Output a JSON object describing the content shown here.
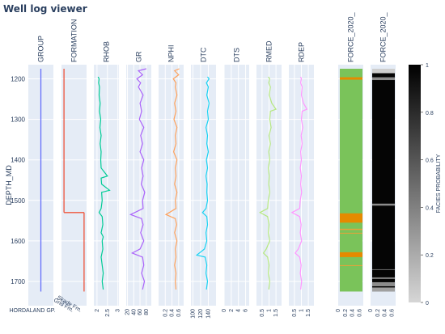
{
  "header": {
    "title": "Well log viewer"
  },
  "chart_data": {
    "type": "line",
    "title": "",
    "y_axis": {
      "label": "DEPTH_MD",
      "range": [
        1760,
        1165
      ],
      "ticks": [
        1200,
        1300,
        1400,
        1500,
        1600,
        1700
      ],
      "reversed": true
    },
    "data_depth_range": [
      1175,
      1725
    ],
    "grid": true,
    "tracks": [
      {
        "name": "GROUP",
        "kind": "categorical",
        "color": "#636efa",
        "x_range": [
          0,
          1
        ],
        "tick_labels": [
          "HORDALAND GP."
        ],
        "segments": [
          {
            "top": 1175,
            "base": 1725,
            "x": 0.5
          }
        ]
      },
      {
        "name": "FORMATION",
        "kind": "categorical",
        "color": "#ef553b",
        "x_range": [
          0,
          1
        ],
        "tick_labels": [
          "Grid Fm.",
          "Skade Fm."
        ],
        "segments": [
          {
            "top": 1175,
            "base": 1530,
            "x": 0.1
          },
          {
            "top": 1530,
            "base": 1725,
            "x": 0.9
          }
        ]
      },
      {
        "name": "RHOB",
        "kind": "log",
        "color": "#00cc96",
        "x_range": [
          1.85,
          3.05
        ],
        "ticks": [
          2,
          2.5,
          3
        ],
        "tick_labels": [
          "2",
          "2.5",
          "3"
        ],
        "curve": [
          [
            1195,
            2.05
          ],
          [
            1200,
            2.1
          ],
          [
            1210,
            2.08
          ],
          [
            1220,
            2.12
          ],
          [
            1240,
            2.1
          ],
          [
            1260,
            2.15
          ],
          [
            1280,
            2.12
          ],
          [
            1300,
            2.18
          ],
          [
            1320,
            2.14
          ],
          [
            1340,
            2.2
          ],
          [
            1360,
            2.15
          ],
          [
            1380,
            2.2
          ],
          [
            1400,
            2.18
          ],
          [
            1420,
            2.2
          ],
          [
            1440,
            2.5
          ],
          [
            1445,
            2.2
          ],
          [
            1460,
            2.22
          ],
          [
            1475,
            2.6
          ],
          [
            1480,
            2.22
          ],
          [
            1500,
            2.25
          ],
          [
            1520,
            2.2
          ],
          [
            1530,
            2.1
          ],
          [
            1540,
            2.25
          ],
          [
            1560,
            2.28
          ],
          [
            1580,
            2.2
          ],
          [
            1590,
            2.3
          ],
          [
            1600,
            2.25
          ],
          [
            1620,
            2.28
          ],
          [
            1640,
            2.2
          ],
          [
            1660,
            2.25
          ],
          [
            1680,
            2.3
          ],
          [
            1700,
            2.25
          ],
          [
            1720,
            2.3
          ]
        ]
      },
      {
        "name": "GR",
        "kind": "log",
        "color": "#ab63fa",
        "x_range": [
          16,
          96
        ],
        "ticks": [
          20,
          40,
          60,
          80
        ],
        "tick_labels": [
          "20",
          "40",
          "60",
          "80"
        ],
        "curve": [
          [
            1175,
            80
          ],
          [
            1180,
            55
          ],
          [
            1190,
            68
          ],
          [
            1200,
            50
          ],
          [
            1210,
            62
          ],
          [
            1220,
            55
          ],
          [
            1240,
            70
          ],
          [
            1260,
            60
          ],
          [
            1280,
            65
          ],
          [
            1300,
            58
          ],
          [
            1320,
            72
          ],
          [
            1340,
            62
          ],
          [
            1360,
            68
          ],
          [
            1380,
            60
          ],
          [
            1400,
            72
          ],
          [
            1420,
            65
          ],
          [
            1440,
            70
          ],
          [
            1460,
            64
          ],
          [
            1480,
            75
          ],
          [
            1500,
            68
          ],
          [
            1520,
            70
          ],
          [
            1535,
            30
          ],
          [
            1545,
            65
          ],
          [
            1560,
            70
          ],
          [
            1580,
            62
          ],
          [
            1600,
            72
          ],
          [
            1620,
            60
          ],
          [
            1630,
            35
          ],
          [
            1640,
            68
          ],
          [
            1660,
            72
          ],
          [
            1680,
            65
          ],
          [
            1700,
            74
          ],
          [
            1720,
            68
          ]
        ]
      },
      {
        "name": "NPHI",
        "kind": "log",
        "color": "#ffa15a",
        "x_range": [
          0.0,
          0.75
        ],
        "ticks": [
          0.2,
          0.4,
          0.6
        ],
        "tick_labels": [
          "0.2",
          "0.4",
          "0.6"
        ],
        "curve": [
          [
            1175,
            0.62
          ],
          [
            1180,
            0.48
          ],
          [
            1190,
            0.6
          ],
          [
            1200,
            0.44
          ],
          [
            1210,
            0.52
          ],
          [
            1220,
            0.5
          ],
          [
            1240,
            0.55
          ],
          [
            1260,
            0.48
          ],
          [
            1280,
            0.52
          ],
          [
            1300,
            0.46
          ],
          [
            1320,
            0.55
          ],
          [
            1340,
            0.5
          ],
          [
            1360,
            0.52
          ],
          [
            1380,
            0.45
          ],
          [
            1400,
            0.55
          ],
          [
            1420,
            0.5
          ],
          [
            1440,
            0.52
          ],
          [
            1460,
            0.48
          ],
          [
            1480,
            0.55
          ],
          [
            1500,
            0.5
          ],
          [
            1520,
            0.52
          ],
          [
            1535,
            0.22
          ],
          [
            1545,
            0.5
          ],
          [
            1560,
            0.54
          ],
          [
            1580,
            0.48
          ],
          [
            1600,
            0.55
          ],
          [
            1620,
            0.5
          ],
          [
            1640,
            0.52
          ],
          [
            1660,
            0.48
          ],
          [
            1680,
            0.52
          ],
          [
            1700,
            0.5
          ],
          [
            1720,
            0.52
          ]
        ]
      },
      {
        "name": "DTC",
        "kind": "log",
        "color": "#19d3f3",
        "x_range": [
          95,
          160
        ],
        "ticks": [
          100,
          120,
          140
        ],
        "tick_labels": [
          "100",
          "120",
          "140"
        ],
        "curve": [
          [
            1195,
            138
          ],
          [
            1200,
            142
          ],
          [
            1210,
            135
          ],
          [
            1220,
            140
          ],
          [
            1240,
            136
          ],
          [
            1260,
            142
          ],
          [
            1280,
            138
          ],
          [
            1300,
            140
          ],
          [
            1320,
            134
          ],
          [
            1340,
            138
          ],
          [
            1360,
            136
          ],
          [
            1380,
            140
          ],
          [
            1400,
            135
          ],
          [
            1420,
            138
          ],
          [
            1440,
            134
          ],
          [
            1460,
            137
          ],
          [
            1480,
            136
          ],
          [
            1500,
            138
          ],
          [
            1520,
            134
          ],
          [
            1530,
            125
          ],
          [
            1540,
            136
          ],
          [
            1560,
            138
          ],
          [
            1580,
            134
          ],
          [
            1600,
            136
          ],
          [
            1620,
            130
          ],
          [
            1635,
            110
          ],
          [
            1640,
            132
          ],
          [
            1660,
            136
          ],
          [
            1680,
            134
          ],
          [
            1700,
            138
          ],
          [
            1720,
            135
          ]
        ]
      },
      {
        "name": "DTS",
        "kind": "log",
        "color": "#ff6692",
        "x_range": [
          0,
          7
        ],
        "ticks": [
          0,
          2,
          4,
          6
        ],
        "tick_labels": [
          "0",
          "2",
          "4",
          "6"
        ],
        "curve": []
      },
      {
        "name": "RMED",
        "kind": "log",
        "color": "#b6e880",
        "x_range": [
          0.1,
          1.9
        ],
        "ticks": [
          0.5,
          1,
          1.5
        ],
        "tick_labels": [
          "0.5",
          "1",
          "1.5"
        ],
        "curve": [
          [
            1195,
            0.95
          ],
          [
            1200,
            1.05
          ],
          [
            1210,
            0.98
          ],
          [
            1220,
            1.1
          ],
          [
            1240,
            1.02
          ],
          [
            1260,
            1.2
          ],
          [
            1275,
            1.5
          ],
          [
            1280,
            1.1
          ],
          [
            1300,
            1.05
          ],
          [
            1320,
            1.15
          ],
          [
            1340,
            1.0
          ],
          [
            1360,
            1.1
          ],
          [
            1380,
            0.98
          ],
          [
            1400,
            1.05
          ],
          [
            1420,
            0.95
          ],
          [
            1440,
            1.02
          ],
          [
            1460,
            0.98
          ],
          [
            1480,
            1.05
          ],
          [
            1500,
            0.95
          ],
          [
            1520,
            0.9
          ],
          [
            1530,
            0.35
          ],
          [
            1540,
            0.9
          ],
          [
            1560,
            1.0
          ],
          [
            1580,
            0.95
          ],
          [
            1600,
            1.05
          ],
          [
            1620,
            0.8
          ],
          [
            1630,
            0.6
          ],
          [
            1640,
            0.9
          ],
          [
            1660,
            1.0
          ],
          [
            1680,
            0.95
          ],
          [
            1700,
            1.05
          ],
          [
            1720,
            0.98
          ]
        ]
      },
      {
        "name": "RDEP",
        "kind": "log",
        "color": "#ff97ff",
        "x_range": [
          0.1,
          1.9
        ],
        "ticks": [
          0.5,
          1,
          1.5
        ],
        "tick_labels": [
          "0.5",
          "1",
          "1.5"
        ],
        "curve": [
          [
            1195,
            0.95
          ],
          [
            1200,
            1.0
          ],
          [
            1210,
            0.95
          ],
          [
            1220,
            1.05
          ],
          [
            1240,
            1.0
          ],
          [
            1260,
            1.15
          ],
          [
            1275,
            1.4
          ],
          [
            1280,
            1.05
          ],
          [
            1300,
            1.0
          ],
          [
            1320,
            1.1
          ],
          [
            1340,
            0.98
          ],
          [
            1360,
            1.05
          ],
          [
            1380,
            0.95
          ],
          [
            1400,
            1.0
          ],
          [
            1420,
            0.92
          ],
          [
            1440,
            1.0
          ],
          [
            1460,
            0.95
          ],
          [
            1480,
            1.02
          ],
          [
            1500,
            0.92
          ],
          [
            1520,
            0.88
          ],
          [
            1530,
            0.32
          ],
          [
            1540,
            0.88
          ],
          [
            1560,
            0.98
          ],
          [
            1580,
            0.92
          ],
          [
            1600,
            1.02
          ],
          [
            1620,
            0.78
          ],
          [
            1630,
            0.55
          ],
          [
            1640,
            0.88
          ],
          [
            1660,
            0.98
          ],
          [
            1680,
            0.92
          ],
          [
            1700,
            1.02
          ],
          [
            1720,
            0.95
          ]
        ]
      },
      {
        "name": "FORCE_2020_",
        "kind": "facies",
        "x_range": [
          0,
          0.7
        ],
        "ticks": [
          0,
          0.2,
          0.4,
          0.6
        ],
        "tick_labels": [
          "0",
          "0.2",
          "0.4",
          "0.6"
        ],
        "base_color": "#7ac35a",
        "bands": [
          {
            "top": 1196,
            "base": 1202,
            "color": "#e58a00"
          },
          {
            "top": 1532,
            "base": 1555,
            "color": "#e58a00"
          },
          {
            "top": 1570,
            "base": 1573,
            "color": "#e8a23a"
          },
          {
            "top": 1580,
            "base": 1582,
            "color": "#e8a23a"
          },
          {
            "top": 1628,
            "base": 1640,
            "color": "#e58a00"
          },
          {
            "top": 1660,
            "base": 1662,
            "color": "#e8a23a"
          }
        ]
      },
      {
        "name": "FORCE_2020_",
        "kind": "facies",
        "x_range": [
          0,
          0.7
        ],
        "ticks": [
          0,
          0.2,
          0.4,
          0.6
        ],
        "tick_labels": [
          "0",
          "0.2",
          "0.4",
          "0.6"
        ],
        "base_color": "#050505",
        "bands": [
          {
            "top": 1175,
            "base": 1186,
            "color": "#cfcfcf"
          },
          {
            "top": 1196,
            "base": 1203,
            "color": "#8c8c8c"
          },
          {
            "top": 1508,
            "base": 1513,
            "color": "#8c8c8c"
          },
          {
            "top": 1670,
            "base": 1672,
            "color": "#6a6a6a"
          },
          {
            "top": 1690,
            "base": 1694,
            "color": "#7a7a7a"
          },
          {
            "top": 1702,
            "base": 1712,
            "color": "#8c8c8c"
          },
          {
            "top": 1715,
            "base": 1725,
            "color": "#a0a0a0"
          }
        ]
      }
    ],
    "colorbar": {
      "label": "FACIES PROBABILITY",
      "range": [
        0,
        1
      ],
      "ticks": [
        0,
        0.2,
        0.4,
        0.6,
        0.8,
        1
      ],
      "tick_labels": [
        "0",
        "0.2",
        "0.4",
        "0.6",
        "0.8",
        "1"
      ],
      "colors": [
        "#d6d6d6",
        "#000000"
      ]
    }
  }
}
